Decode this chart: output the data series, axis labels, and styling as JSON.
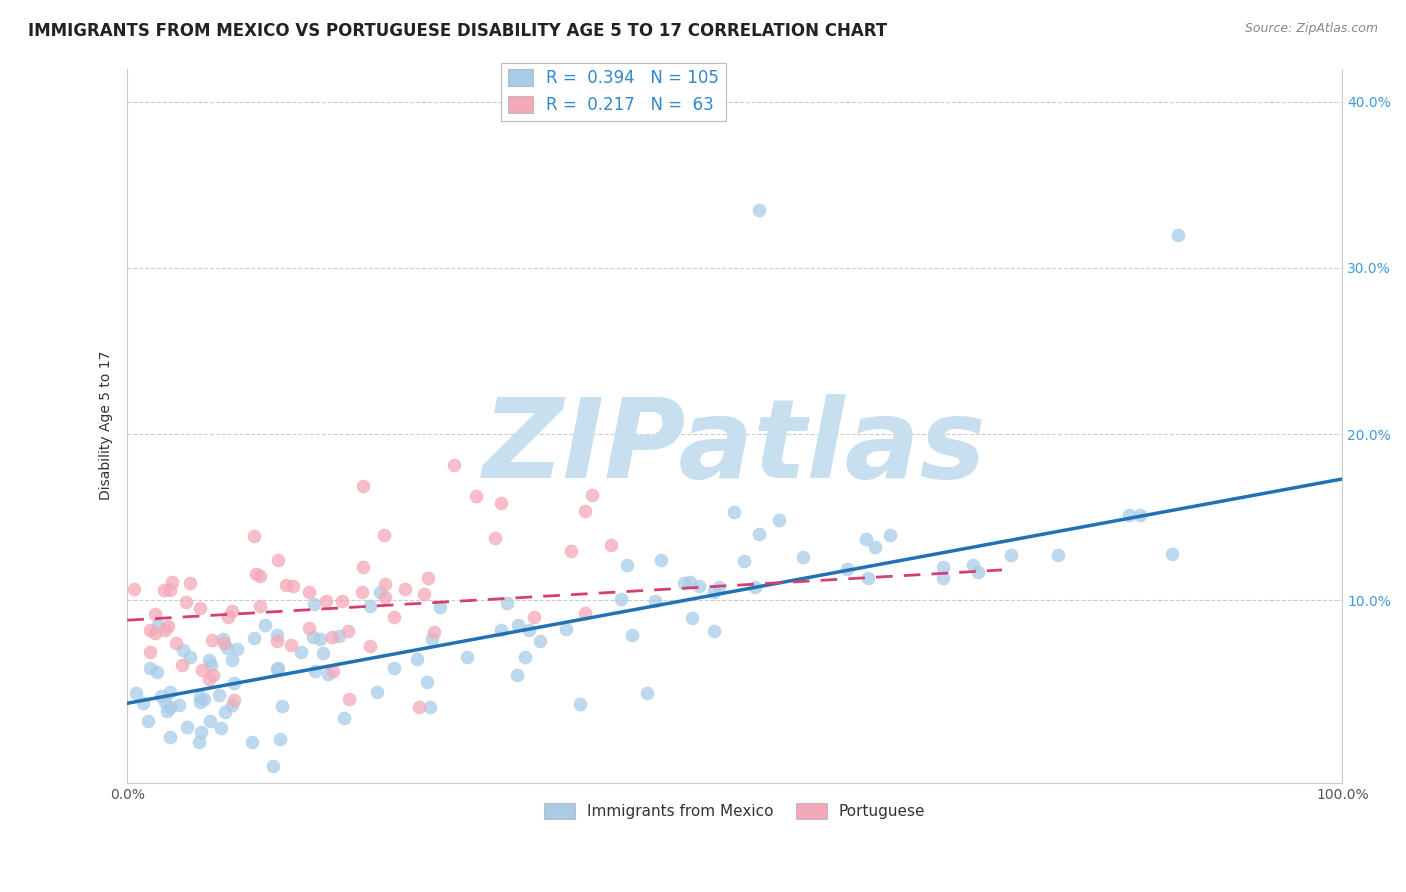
{
  "title": "IMMIGRANTS FROM MEXICO VS PORTUGUESE DISABILITY AGE 5 TO 17 CORRELATION CHART",
  "source": "Source: ZipAtlas.com",
  "ylabel": "Disability Age 5 to 17",
  "xlim": [
    0,
    1.0
  ],
  "ylim": [
    -0.01,
    0.42
  ],
  "ytick_vals": [
    0.0,
    0.1,
    0.2,
    0.3,
    0.4
  ],
  "ytick_labels": [
    "",
    "10.0%",
    "20.0%",
    "30.0%",
    "40.0%"
  ],
  "xtick_vals": [
    0.0,
    1.0
  ],
  "xtick_labels": [
    "0.0%",
    "100.0%"
  ],
  "blue_R": "0.394",
  "blue_N": "105",
  "pink_R": "0.217",
  "pink_N": "63",
  "blue_scatter_color": "#a8cce8",
  "pink_scatter_color": "#f4a8b8",
  "blue_line_color": "#2171b5",
  "pink_line_color": "#d44070",
  "background_color": "#ffffff",
  "watermark_text": "ZIPatlas",
  "watermark_color": "#c8dff0",
  "legend_label_blue": "Immigrants from Mexico",
  "legend_label_pink": "Portuguese",
  "grid_color": "#cccccc",
  "title_fontsize": 12,
  "axis_label_fontsize": 10,
  "tick_fontsize": 10,
  "legend_fontsize": 12,
  "tick_color_y": "#4499dd",
  "tick_color_x": "#555555",
  "blue_line_intercept": 0.038,
  "blue_line_slope": 0.135,
  "pink_line_intercept": 0.088,
  "pink_line_slope": 0.042
}
